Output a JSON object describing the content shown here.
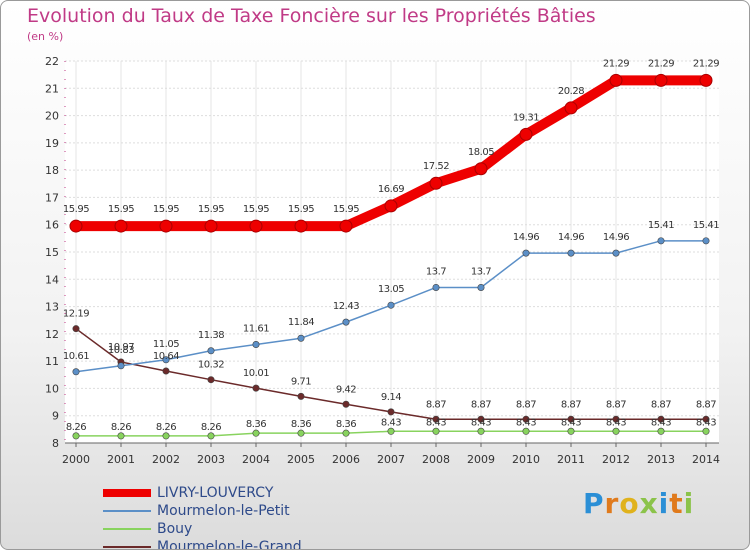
{
  "page": {
    "title": "Evolution du Taux de Taxe Foncière sur les Propriétés Bâties",
    "subtitle": "(en %)"
  },
  "logo": {
    "text": "Proxiti",
    "letters": [
      {
        "ch": "P",
        "color": "#2b8fd6"
      },
      {
        "ch": "r",
        "color": "#e07a1c"
      },
      {
        "ch": "o",
        "color": "#e0b21c"
      },
      {
        "ch": "x",
        "color": "#8bc34a"
      },
      {
        "ch": "i",
        "color": "#2b8fd6"
      },
      {
        "ch": "t",
        "color": "#e07a1c"
      },
      {
        "ch": "i",
        "color": "#8bc34a"
      }
    ]
  },
  "chart_data": {
    "type": "line",
    "title": "Evolution du Taux de Taxe Foncière sur les Propriétés Bâties",
    "subtitle": "(en %)",
    "xlabel": "",
    "ylabel": "",
    "x": [
      2000,
      2001,
      2002,
      2003,
      2004,
      2005,
      2006,
      2007,
      2008,
      2009,
      2010,
      2011,
      2012,
      2013,
      2014
    ],
    "ylim": [
      8,
      22
    ],
    "yticks": [
      8,
      9,
      10,
      11,
      12,
      13,
      14,
      15,
      16,
      17,
      18,
      19,
      20,
      21,
      22
    ],
    "grid": true,
    "legend_position": "bottom-left",
    "series": [
      {
        "name": "LIVRY-LOUVERCY",
        "color": "#ee0000",
        "values": [
          15.95,
          15.95,
          15.95,
          15.95,
          15.95,
          15.95,
          15.95,
          16.69,
          17.52,
          18.05,
          19.31,
          20.28,
          21.29,
          21.29,
          21.29
        ],
        "labels": [
          "15.95",
          "15.95",
          "15.95",
          "15.95",
          "15.95",
          "15.95",
          "15.95",
          "16.69",
          "17.52",
          "18.05",
          "19.31",
          "20.28",
          "21.29",
          "21.29",
          "21.29"
        ]
      },
      {
        "name": "Mourmelon-le-Petit",
        "color": "#5b8fc7",
        "values": [
          10.61,
          10.83,
          11.05,
          11.38,
          11.61,
          11.84,
          12.43,
          13.05,
          13.7,
          13.7,
          14.96,
          14.96,
          14.96,
          15.41,
          15.41
        ],
        "labels": [
          "10.61",
          "10.83",
          "11.05",
          "11.38",
          "11.61",
          "11.84",
          "12.43",
          "13.05",
          "13.7",
          "13.7",
          "14.96",
          "14.96",
          "14.96",
          "15.41",
          "15.41"
        ]
      },
      {
        "name": "Bouy",
        "color": "#88d35e",
        "values": [
          8.26,
          8.26,
          8.26,
          8.26,
          8.36,
          8.36,
          8.36,
          8.43,
          8.43,
          8.43,
          8.43,
          8.43,
          8.43,
          8.43,
          8.43
        ],
        "labels": [
          "8.26",
          "8.26",
          "8.26",
          "8.26",
          "8.36",
          "8.36",
          "8.36",
          "8.43",
          "8.43",
          "8.43",
          "8.43",
          "8.43",
          "8.43",
          "8.43",
          "8.43"
        ]
      },
      {
        "name": "Mourmelon-le-Grand",
        "color": "#6b2a2a",
        "values": [
          12.19,
          10.97,
          10.64,
          10.32,
          10.01,
          9.71,
          9.42,
          9.14,
          8.87,
          8.87,
          8.87,
          8.87,
          8.87,
          8.87,
          8.87
        ],
        "labels": [
          "12.19",
          "10.97",
          "10.64",
          "10.32",
          "10.01",
          "9.71",
          "9.42",
          "9.14",
          "8.87",
          "8.87",
          "8.87",
          "8.87",
          "8.87",
          "8.87",
          "8.87"
        ]
      }
    ]
  }
}
